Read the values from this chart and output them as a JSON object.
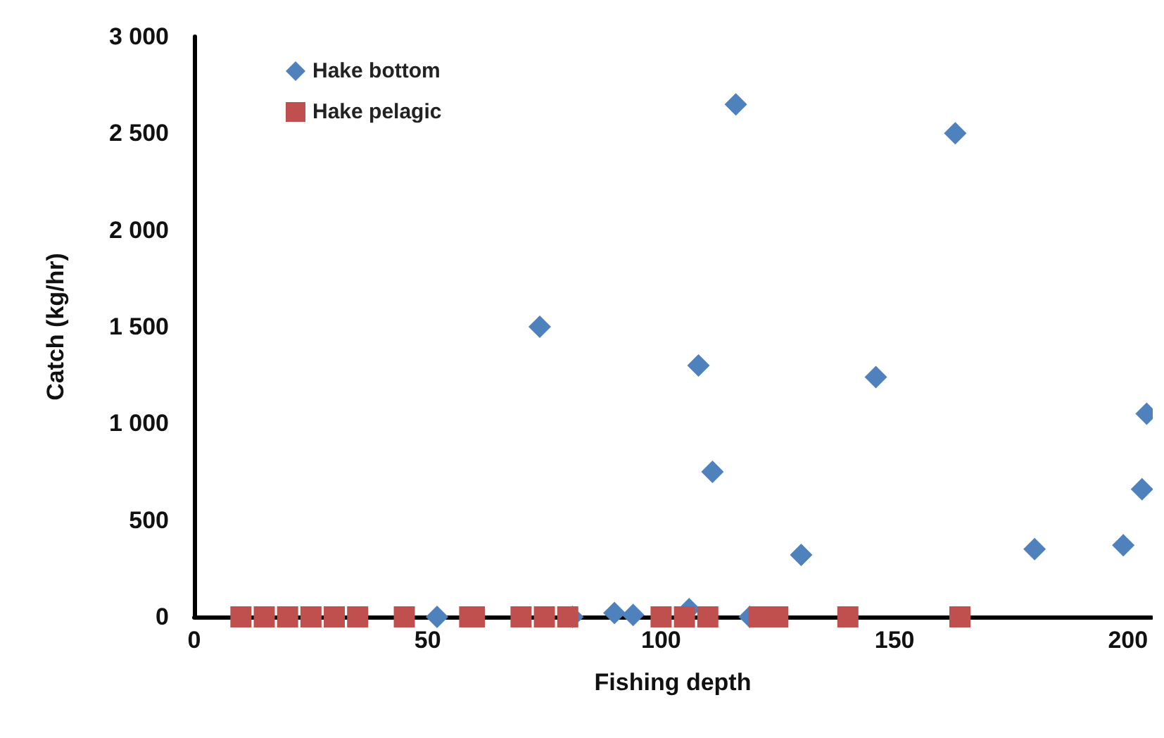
{
  "chart_data": {
    "type": "scatter",
    "xlabel": "Fishing depth",
    "ylabel": "Catch (kg/hr)",
    "xlim": [
      0,
      205
    ],
    "xticks": [
      0,
      50,
      100,
      150,
      200
    ],
    "ylim": [
      0,
      3000
    ],
    "yticks": [
      0,
      500,
      {
        "value": 1000,
        "label": "1 000"
      },
      {
        "value": 1500,
        "label": "1 500"
      },
      {
        "value": 2000,
        "label": "2 000"
      },
      {
        "value": 2500,
        "label": "2 500"
      },
      {
        "value": 3000,
        "label": "3 000"
      }
    ],
    "grid": false,
    "legend": "top left",
    "series": [
      {
        "name": "Hake bottom",
        "color": "#4f81bd",
        "marker": "diamond",
        "x": [
          52,
          81,
          90,
          94,
          106,
          119,
          74,
          108,
          111,
          116,
          130,
          146,
          163,
          180,
          199,
          203,
          204
        ],
        "values": [
          0,
          0,
          20,
          10,
          40,
          0,
          1500,
          1300,
          750,
          2650,
          320,
          1240,
          2500,
          350,
          370,
          660,
          1050
        ]
      },
      {
        "name": "Hake pelagic",
        "color": "#c0504d",
        "marker": "square",
        "x": [
          10,
          15,
          20,
          25,
          30,
          35,
          45,
          59,
          60,
          70,
          75,
          80,
          100,
          105,
          110,
          121,
          125,
          140,
          164
        ],
        "values": [
          0,
          0,
          0,
          0,
          0,
          0,
          0,
          0,
          0,
          0,
          0,
          0,
          0,
          0,
          0,
          0,
          0,
          0,
          0
        ]
      }
    ]
  }
}
